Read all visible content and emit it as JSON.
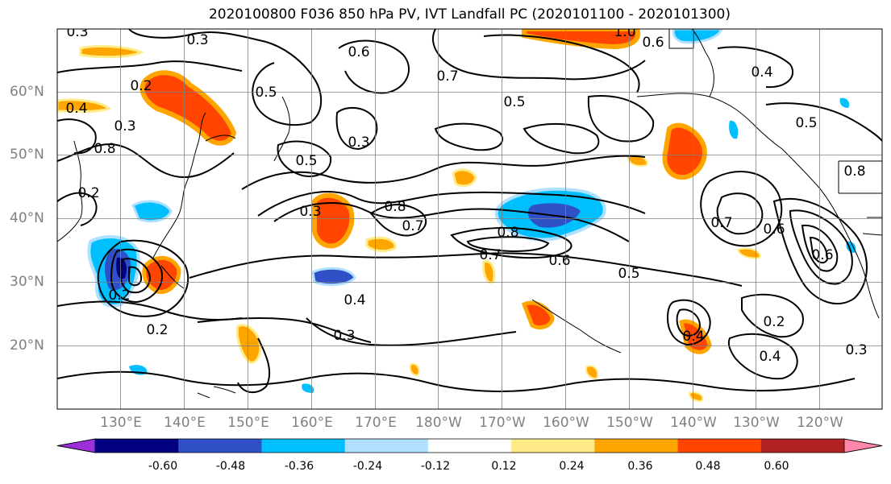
{
  "title": "2020100800 F036 850 hPa PV, IVT Landfall PC (2020101100 - 2020101300)",
  "lat_labels": [
    "60°N",
    "50°N",
    "40°N",
    "30°N",
    "20°N"
  ],
  "lon_labels": [
    "130°E",
    "140°E",
    "150°E",
    "160°E",
    "170°E",
    "180°W",
    "170°W",
    "160°W",
    "150°W",
    "140°W",
    "130°W",
    "120°W"
  ],
  "colorbar": {
    "ticks": [
      "-0.60",
      "-0.48",
      "-0.36",
      "-0.24",
      "-0.12",
      "0.12",
      "0.24",
      "0.36",
      "0.48",
      "0.60"
    ],
    "colors": [
      "#9b30d9",
      "#000080",
      "#3050c8",
      "#00bfff",
      "#b0e0ff",
      "#ffffff",
      "#ffeb88",
      "#ffa500",
      "#ff4500",
      "#b22222",
      "#ff88aa"
    ]
  },
  "contour_labels": [
    "0.3",
    "0.3",
    "0.4",
    "0.5",
    "0.3",
    "0.6",
    "0.6",
    "1.0",
    "0.7",
    "0.5",
    "0.5",
    "0.4",
    "0.2",
    "0.3",
    "0.3",
    "0.8",
    "0.7",
    "0.8",
    "0.7",
    "0.6",
    "0.5",
    "0.4",
    "0.3",
    "0.2",
    "0.7",
    "0.6",
    "0.5",
    "0.2",
    "0.4",
    "0.3",
    "0.2",
    "0.4",
    "0.8",
    "0.6",
    "0.8",
    "0.2"
  ]
}
